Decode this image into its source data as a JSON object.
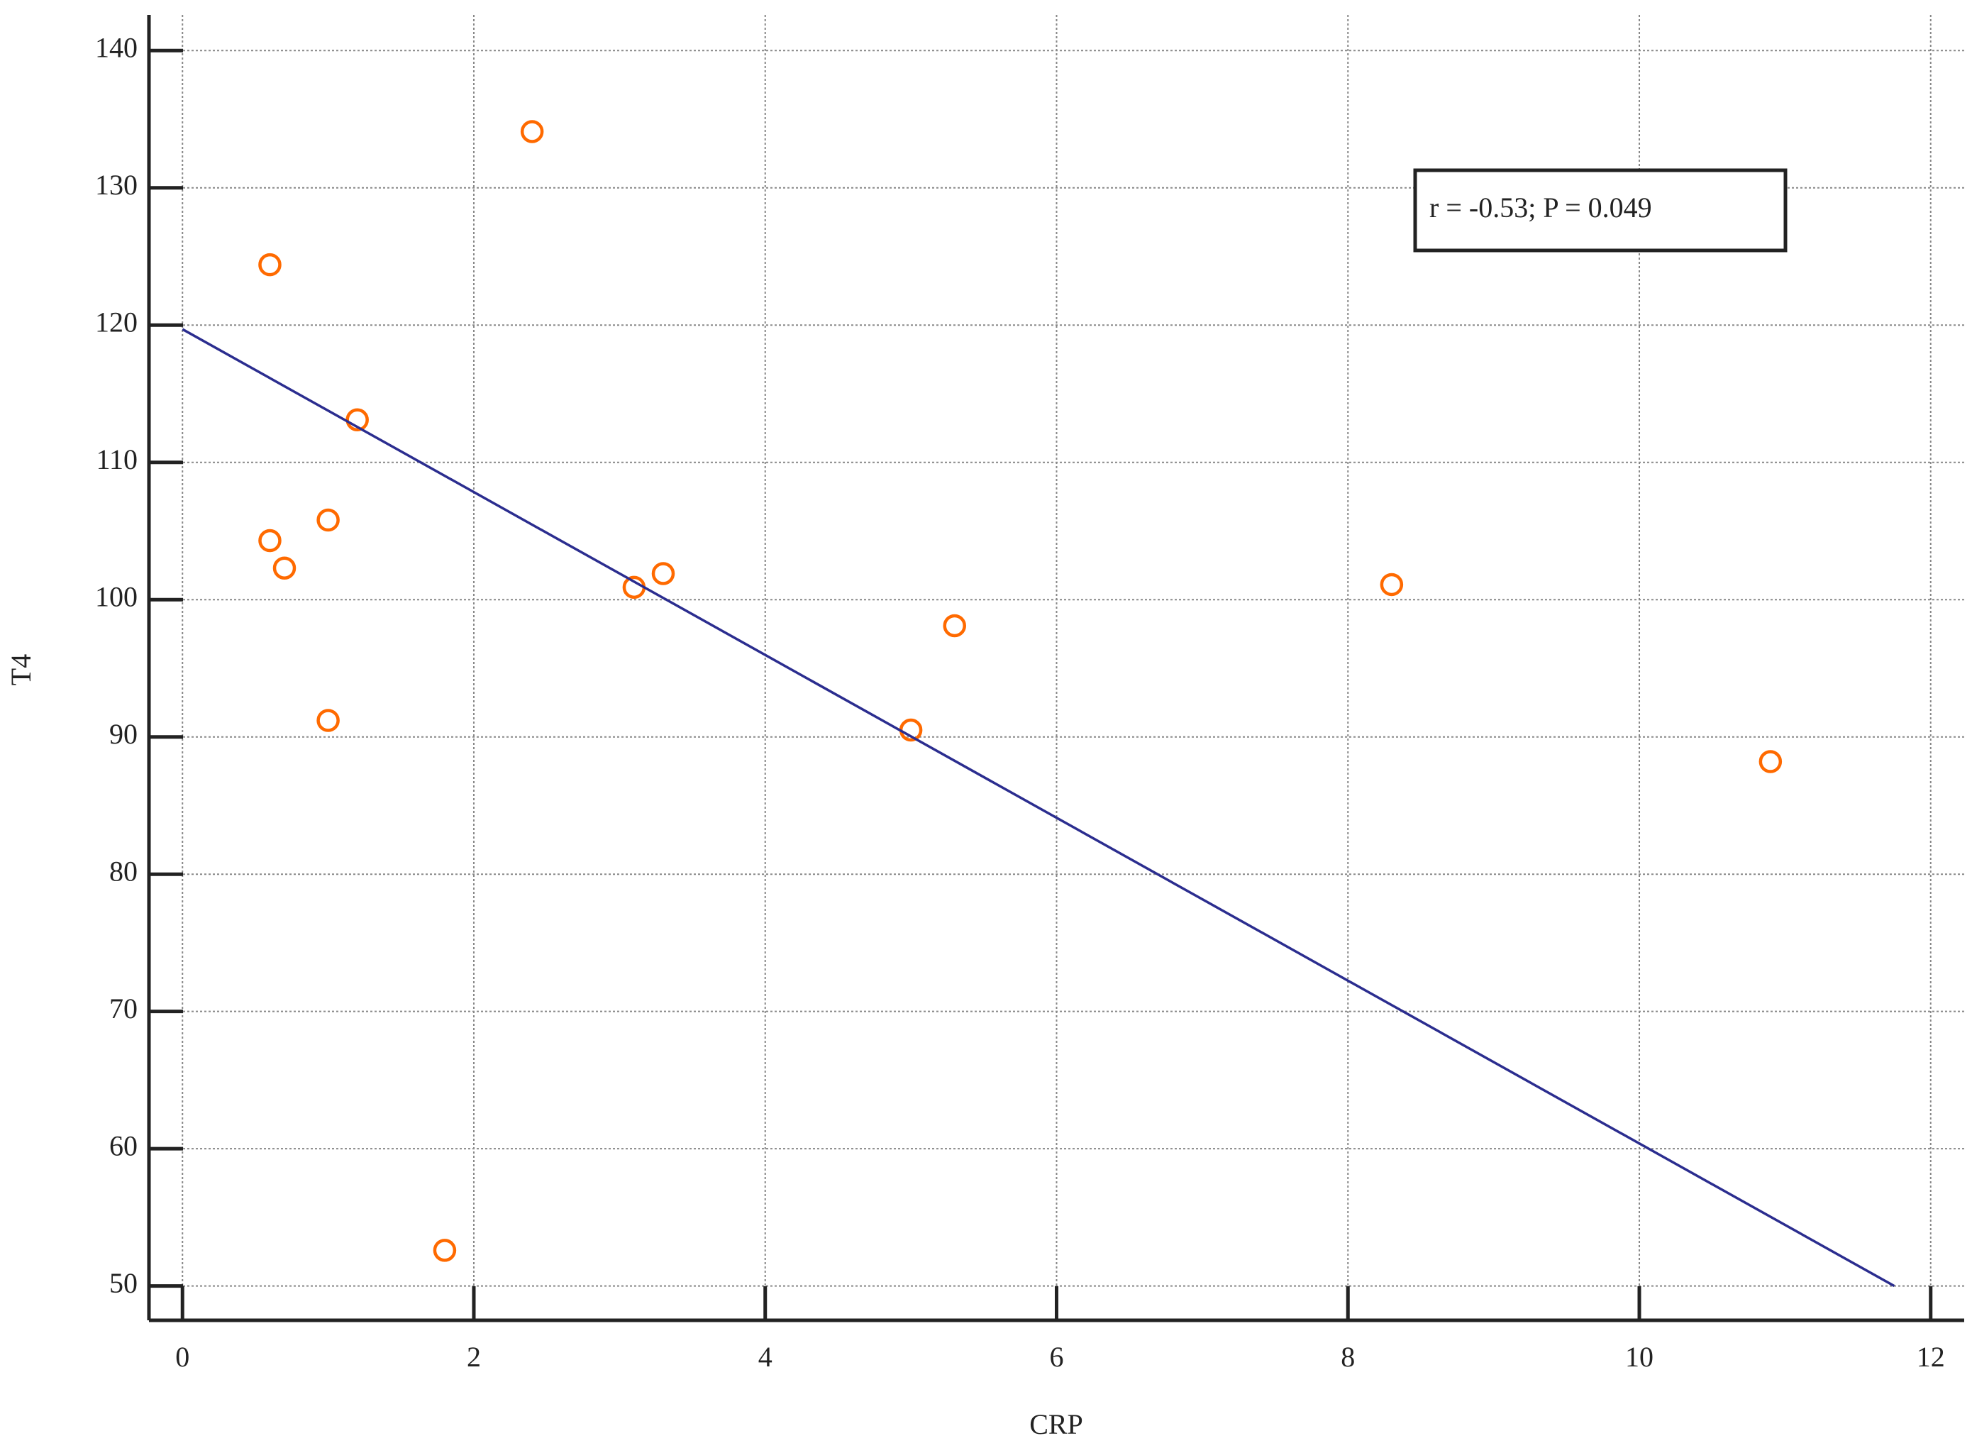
{
  "chart_data": {
    "type": "scatter",
    "x_label": "CRP",
    "y_label": "T4",
    "annotation": "r = -0.53; P = 0.049",
    "series": [
      {
        "type": "scatter",
        "color": "#ff6a00",
        "x": [
          0.6,
          0.6,
          0.7,
          1.0,
          1.0,
          1.2,
          1.8,
          2.4,
          3.1,
          3.3,
          5.0,
          5.3,
          8.3,
          10.9
        ],
        "values": [
          124.4,
          104.3,
          102.3,
          105.8,
          91.2,
          113.1,
          52.6,
          134.1,
          100.9,
          101.9,
          90.5,
          98.1,
          101.1,
          88.2
        ]
      },
      {
        "type": "line",
        "color": "#2b2d8f",
        "x": [
          0,
          11.75
        ],
        "values": [
          119.7,
          50
        ]
      }
    ],
    "xlim": [
      -0.23,
      12.23
    ],
    "ylim": [
      47.5,
      142.6
    ],
    "xticks": [
      0,
      2,
      4,
      6,
      8,
      10,
      12
    ],
    "yticks": [
      50,
      60,
      70,
      80,
      90,
      100,
      110,
      120,
      130,
      140
    ],
    "grid": true
  }
}
